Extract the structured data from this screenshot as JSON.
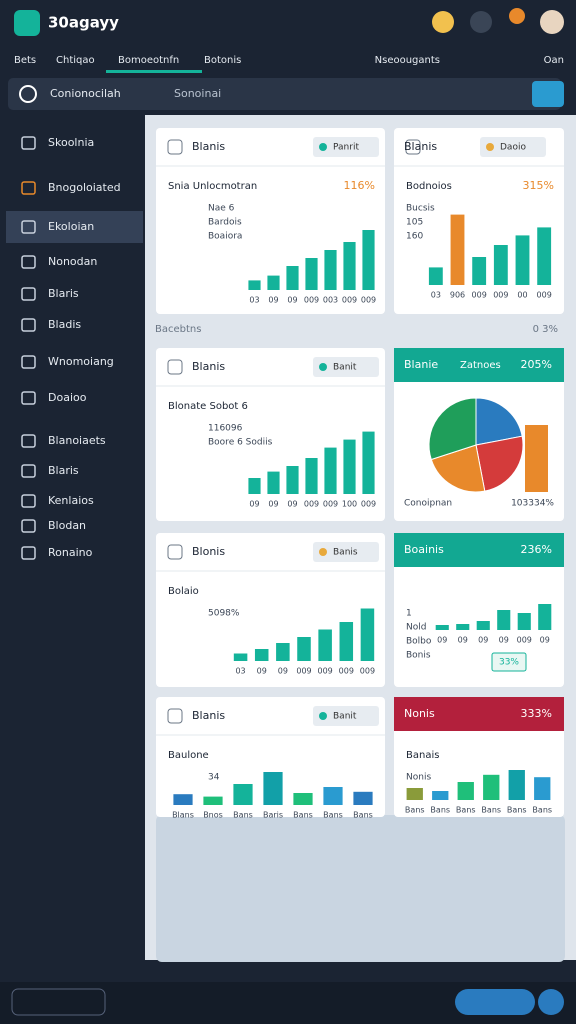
{
  "header": {
    "logo": "30agayy"
  },
  "nav": {
    "tabs": [
      "Bets",
      "Chtiqao",
      "Bomoeotnfn",
      "Botonis"
    ],
    "right": [
      "Nseoougants",
      "Oan"
    ]
  },
  "search": {
    "title": "Conionocilah",
    "placeholder": "Sonoinai"
  },
  "sidebar": {
    "items": [
      "Skoolnia",
      "Bnogoloiated",
      "Ekoloian",
      "Nonodan",
      "Blaris",
      "Bladis",
      "Wnomoiang",
      "Doaioo",
      "Blanoiaets",
      "Blaris",
      "Kenlaios",
      "Blodan",
      "Ronaino"
    ]
  },
  "section_label": "Bacebtns",
  "section_meta": "0 3%",
  "cards": [
    {
      "title": "Blanis",
      "pill": "Panrit",
      "heading": "Snia Unlocmotran",
      "value": "116%",
      "notes": [
        "Nae 6",
        "Bardois",
        "Boaiora"
      ],
      "chart": {
        "type": "bar",
        "color": "#14b39a",
        "categories": [
          "03",
          "09",
          "09",
          "009",
          "003",
          "009",
          "009"
        ],
        "values": [
          12,
          18,
          30,
          40,
          50,
          60,
          75
        ]
      }
    },
    {
      "title": "Blanis",
      "pill": "Daoio",
      "heading": "Bodnoios",
      "value": "315%",
      "notes": [
        "Bucsis",
        "105",
        "160"
      ],
      "chart": {
        "type": "bar",
        "colors": [
          "#14b39a",
          "#e8892b",
          "#14b39a",
          "#14b39a",
          "#14b39a",
          "#14b39a"
        ],
        "categories": [
          "03",
          "906",
          "009",
          "009",
          "00",
          "009"
        ],
        "values": [
          22,
          88,
          35,
          50,
          62,
          72
        ]
      }
    },
    {
      "title": "Blanis",
      "pill": "Banit",
      "heading": "Blonate Sobot 6",
      "notes": [
        "116096",
        "Boore 6 Sodiis"
      ],
      "chart": {
        "type": "bar",
        "color": "#14b39a",
        "categories": [
          "09",
          "09",
          "09",
          "009",
          "009",
          "100",
          "009"
        ],
        "values": [
          20,
          28,
          35,
          45,
          58,
          68,
          78
        ]
      }
    },
    {
      "title": "Blanie",
      "header_color": "#12a892",
      "subtitle": "Zatnoes",
      "value": "205%",
      "notes": [
        "Conoipnan",
        "103334%"
      ],
      "chart": {
        "type": "pie",
        "colors": [
          "#2a7bbf",
          "#d43b3b",
          "#e8892b",
          "#1f9e5a"
        ],
        "values": [
          22,
          25,
          23,
          30
        ]
      }
    },
    {
      "title": "Blonis",
      "pill": "Banis",
      "heading": "Bolaio",
      "notes": [
        "5098%"
      ],
      "chart": {
        "type": "bar",
        "color": "#14b39a",
        "categories": [
          "03",
          "09",
          "09",
          "009",
          "009",
          "009",
          "009"
        ],
        "values": [
          10,
          16,
          24,
          32,
          42,
          52,
          70
        ]
      }
    },
    {
      "title": "Boainis",
      "header_color": "#12a892",
      "value": "236%",
      "notes": [
        "1",
        "Nold",
        "Bolbo",
        "Bonis"
      ],
      "badge": "33%",
      "chart": {
        "type": "bar",
        "color": "#14b39a",
        "categories": [
          "09",
          "09",
          "09",
          "09",
          "009",
          "09"
        ],
        "values": [
          10,
          12,
          18,
          40,
          34,
          52
        ]
      }
    },
    {
      "title": "Blanis",
      "pill": "Banit",
      "heading": "Baulone",
      "notes": [
        "34"
      ],
      "chart": {
        "type": "bar",
        "colors": [
          "#2a7bbf",
          "#1fbf7a",
          "#14b39a",
          "#12a0a8",
          "#1fbf7a",
          "#2a9bd0",
          "#2a7bbf"
        ],
        "categories": [
          "Blans",
          "Bnos",
          "Bans",
          "Baris",
          "Bans",
          "Bans",
          "Bans"
        ],
        "values": [
          18,
          14,
          35,
          55,
          20,
          30,
          22
        ]
      }
    },
    {
      "title": "Nonis",
      "header_color": "#b3203c",
      "value": "333%",
      "heading": "Banais",
      "notes": [
        "Nonis"
      ],
      "chart": {
        "type": "bar",
        "colors": [
          "#8a9b3a",
          "#2a9bd0",
          "#1fbf7a",
          "#1fbf7a",
          "#12a0a8",
          "#2a9bd0"
        ],
        "categories": [
          "Bans",
          "Bans",
          "Bans",
          "Bans",
          "Bans",
          "Bans"
        ],
        "values": [
          20,
          15,
          30,
          42,
          50,
          38
        ]
      }
    }
  ]
}
